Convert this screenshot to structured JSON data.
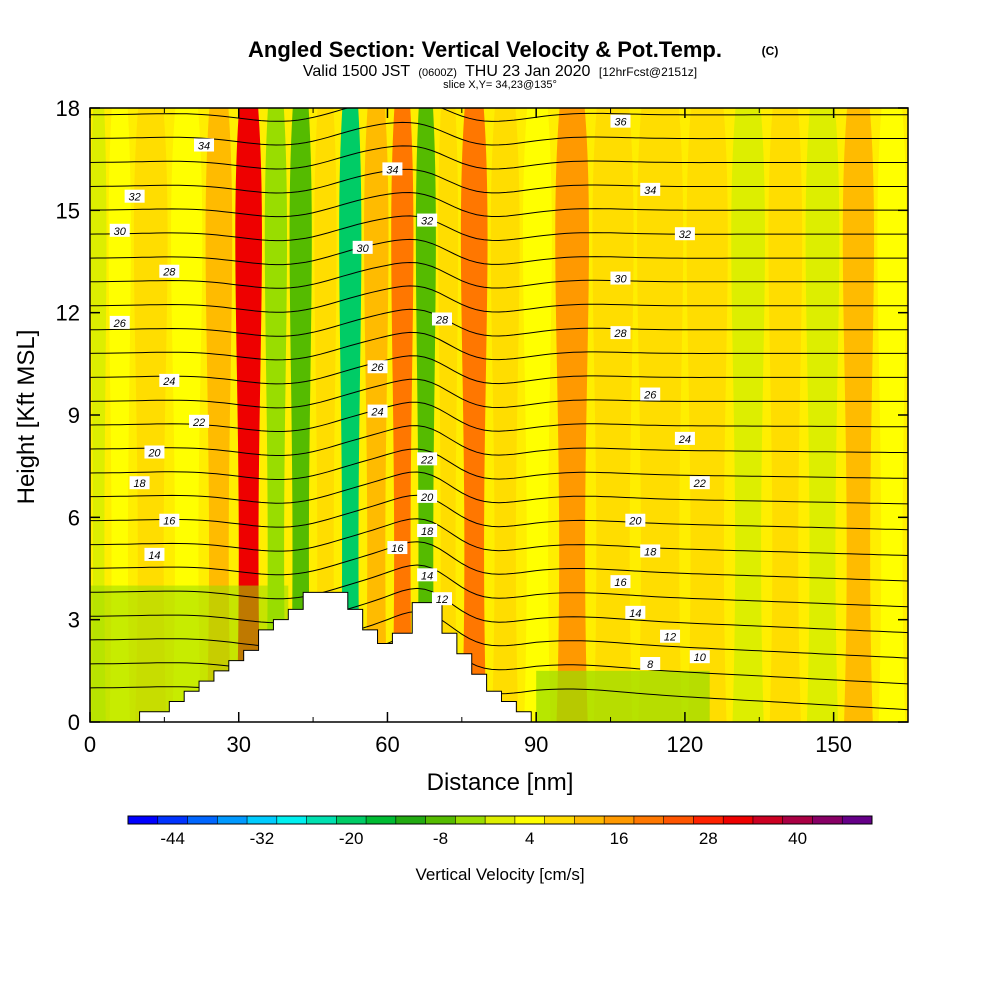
{
  "chart_data": {
    "type": "heatmap",
    "title": "Angled Section: Vertical Velocity & Pot.Temp.",
    "title_mark": "(C)",
    "subtitle_pre": "Valid 1500 JST",
    "subtitle_small1": "(0600Z)",
    "subtitle_mid": "THU 23 Jan 2020",
    "subtitle_small2": "[12hrFcst@2151z]",
    "slice_label": "slice X,Y= 34,23@135°",
    "xlabel": "Distance [nm]",
    "ylabel": "Height [Kft MSL]",
    "xlim": [
      0,
      165
    ],
    "ylim": [
      0,
      18
    ],
    "x_ticks": [
      "0",
      "30",
      "60",
      "90",
      "120",
      "150"
    ],
    "y_ticks": [
      "0",
      "3",
      "6",
      "9",
      "12",
      "15",
      "18"
    ],
    "colorbar": {
      "title": "Vertical Velocity [cm/s]",
      "tick_labels": [
        "-44",
        "-32",
        "-20",
        "-8",
        "4",
        "16",
        "28",
        "40"
      ],
      "colors": [
        "#0000ff",
        "#0033ff",
        "#0066ff",
        "#0099ff",
        "#00ccff",
        "#00f0f0",
        "#00e0b0",
        "#00cc66",
        "#00bb33",
        "#22aa11",
        "#55bb00",
        "#99dd00",
        "#ddee00",
        "#ffff00",
        "#ffdd00",
        "#ffbb00",
        "#ff9900",
        "#ff7700",
        "#ff5500",
        "#ff2200",
        "#ee0000",
        "#cc0022",
        "#aa0044",
        "#880066",
        "#660088"
      ]
    },
    "vertical_velocity_bands": [
      {
        "x_center": 2,
        "value": -2
      },
      {
        "x_center": 5,
        "value": 2
      },
      {
        "x_center": 12,
        "value": 8
      },
      {
        "x_center": 20,
        "value": 4
      },
      {
        "x_center": 26,
        "value": 12
      },
      {
        "x_center": 32,
        "value": 30
      },
      {
        "x_center": 38,
        "value": -4
      },
      {
        "x_center": 42,
        "value": -10
      },
      {
        "x_center": 48,
        "value": 6
      },
      {
        "x_center": 52,
        "value": -20
      },
      {
        "x_center": 58,
        "value": 10
      },
      {
        "x_center": 63,
        "value": 18
      },
      {
        "x_center": 68,
        "value": -10
      },
      {
        "x_center": 72,
        "value": 6
      },
      {
        "x_center": 77,
        "value": 20
      },
      {
        "x_center": 84,
        "value": 8
      },
      {
        "x_center": 90,
        "value": 4
      },
      {
        "x_center": 97,
        "value": 14
      },
      {
        "x_center": 105,
        "value": 6
      },
      {
        "x_center": 115,
        "value": 8
      },
      {
        "x_center": 125,
        "value": 6
      },
      {
        "x_center": 133,
        "value": -2
      },
      {
        "x_center": 140,
        "value": 6
      },
      {
        "x_center": 148,
        "value": -2
      },
      {
        "x_center": 155,
        "value": 10
      },
      {
        "x_center": 162,
        "value": 4
      }
    ],
    "terrain": [
      [
        0,
        0
      ],
      [
        10,
        0
      ],
      [
        10,
        0.3
      ],
      [
        16,
        0.3
      ],
      [
        16,
        0.6
      ],
      [
        19,
        0.6
      ],
      [
        19,
        0.9
      ],
      [
        22,
        0.9
      ],
      [
        22,
        1.2
      ],
      [
        25,
        1.2
      ],
      [
        25,
        1.5
      ],
      [
        28,
        1.5
      ],
      [
        28,
        1.8
      ],
      [
        31,
        1.8
      ],
      [
        31,
        2.1
      ],
      [
        34,
        2.1
      ],
      [
        34,
        2.7
      ],
      [
        37,
        2.7
      ],
      [
        37,
        3.0
      ],
      [
        40,
        3.0
      ],
      [
        40,
        3.3
      ],
      [
        43,
        3.3
      ],
      [
        43,
        3.8
      ],
      [
        52,
        3.8
      ],
      [
        52,
        3.3
      ],
      [
        55,
        3.3
      ],
      [
        55,
        2.7
      ],
      [
        58,
        2.7
      ],
      [
        58,
        2.3
      ],
      [
        61,
        2.3
      ],
      [
        61,
        2.6
      ],
      [
        65,
        2.6
      ],
      [
        65,
        3.5
      ],
      [
        71,
        3.5
      ],
      [
        71,
        2.6
      ],
      [
        74,
        2.6
      ],
      [
        74,
        2.0
      ],
      [
        77,
        2.0
      ],
      [
        77,
        1.4
      ],
      [
        80,
        1.4
      ],
      [
        80,
        0.9
      ],
      [
        83,
        0.9
      ],
      [
        83,
        0.6
      ],
      [
        86,
        0.6
      ],
      [
        86,
        0.3
      ],
      [
        89,
        0.3
      ],
      [
        89,
        0
      ],
      [
        165,
        0
      ]
    ],
    "theta_levels": [
      8,
      10,
      12,
      14,
      16,
      18,
      20,
      22,
      24,
      26,
      28,
      30,
      32,
      34,
      36
    ],
    "contour_labels": [
      {
        "x": 23,
        "y": 16.9,
        "text": "34"
      },
      {
        "x": 9,
        "y": 15.4,
        "text": "32"
      },
      {
        "x": 6,
        "y": 14.4,
        "text": "30"
      },
      {
        "x": 16,
        "y": 13.2,
        "text": "28"
      },
      {
        "x": 6,
        "y": 11.7,
        "text": "26"
      },
      {
        "x": 16,
        "y": 10.0,
        "text": "24"
      },
      {
        "x": 22,
        "y": 8.8,
        "text": "22"
      },
      {
        "x": 13,
        "y": 7.9,
        "text": "20"
      },
      {
        "x": 10,
        "y": 7.0,
        "text": "18"
      },
      {
        "x": 16,
        "y": 5.9,
        "text": "16"
      },
      {
        "x": 13,
        "y": 4.9,
        "text": "14"
      },
      {
        "x": 61,
        "y": 16.2,
        "text": "34"
      },
      {
        "x": 68,
        "y": 14.7,
        "text": "32"
      },
      {
        "x": 55,
        "y": 13.9,
        "text": "30"
      },
      {
        "x": 71,
        "y": 11.8,
        "text": "28"
      },
      {
        "x": 58,
        "y": 10.4,
        "text": "26"
      },
      {
        "x": 58,
        "y": 9.1,
        "text": "24"
      },
      {
        "x": 68,
        "y": 7.7,
        "text": "22"
      },
      {
        "x": 68,
        "y": 6.6,
        "text": "20"
      },
      {
        "x": 68,
        "y": 5.6,
        "text": "18"
      },
      {
        "x": 62,
        "y": 5.1,
        "text": "16"
      },
      {
        "x": 68,
        "y": 4.3,
        "text": "14"
      },
      {
        "x": 71,
        "y": 3.6,
        "text": "12"
      },
      {
        "x": 107,
        "y": 17.6,
        "text": "36"
      },
      {
        "x": 113,
        "y": 15.6,
        "text": "34"
      },
      {
        "x": 120,
        "y": 14.3,
        "text": "32"
      },
      {
        "x": 107,
        "y": 13.0,
        "text": "30"
      },
      {
        "x": 107,
        "y": 11.4,
        "text": "28"
      },
      {
        "x": 113,
        "y": 9.6,
        "text": "26"
      },
      {
        "x": 120,
        "y": 8.3,
        "text": "24"
      },
      {
        "x": 123,
        "y": 7.0,
        "text": "22"
      },
      {
        "x": 110,
        "y": 5.9,
        "text": "20"
      },
      {
        "x": 113,
        "y": 5.0,
        "text": "18"
      },
      {
        "x": 107,
        "y": 4.1,
        "text": "16"
      },
      {
        "x": 110,
        "y": 3.2,
        "text": "14"
      },
      {
        "x": 117,
        "y": 2.5,
        "text": "12"
      },
      {
        "x": 123,
        "y": 1.9,
        "text": "10"
      },
      {
        "x": 113,
        "y": 1.7,
        "text": "8"
      }
    ]
  }
}
